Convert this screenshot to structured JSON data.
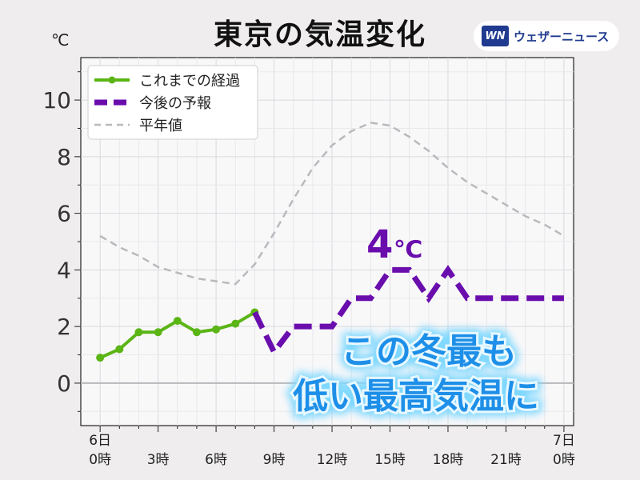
{
  "header": {
    "title": "東京の気温変化",
    "unit": "℃"
  },
  "logo": {
    "badge": "WN",
    "text": "ウェザーニュース"
  },
  "chart_data": {
    "type": "line",
    "ylim": [
      -1.5,
      11.5
    ],
    "xlim": [
      -1,
      24.5
    ],
    "y_ticks": [
      0,
      2,
      4,
      6,
      8,
      10
    ],
    "x_ticks": [
      {
        "x": 0,
        "line1": "6日",
        "line2": "0時"
      },
      {
        "x": 3,
        "line1": "",
        "line2": "3時"
      },
      {
        "x": 6,
        "line1": "",
        "line2": "6時"
      },
      {
        "x": 9,
        "line1": "",
        "line2": "9時"
      },
      {
        "x": 12,
        "line1": "",
        "line2": "12時"
      },
      {
        "x": 15,
        "line1": "",
        "line2": "15時"
      },
      {
        "x": 18,
        "line1": "",
        "line2": "18時"
      },
      {
        "x": 21,
        "line1": "",
        "line2": "21時"
      },
      {
        "x": 24,
        "line1": "7日",
        "line2": "0時"
      }
    ],
    "series": [
      {
        "name": "これまでの経過",
        "color": "#5bb515",
        "style": "solid-markers",
        "x": [
          0,
          1,
          2,
          3,
          4,
          5,
          6,
          7,
          8
        ],
        "y": [
          0.9,
          1.2,
          1.8,
          1.8,
          2.2,
          1.8,
          1.9,
          2.1,
          2.5
        ]
      },
      {
        "name": "今後の予報",
        "color": "#6a0dad",
        "style": "dashed-bold",
        "x": [
          8,
          9,
          10,
          11,
          12,
          13,
          14,
          15,
          16,
          17,
          18,
          19,
          20,
          21,
          22,
          23,
          24
        ],
        "y": [
          2.5,
          1.1,
          2,
          2,
          2,
          3,
          3,
          4,
          4,
          3,
          4,
          3,
          3,
          3,
          3,
          3,
          3
        ]
      },
      {
        "name": "平年値",
        "color": "#b9b9bd",
        "style": "dashed-thin",
        "x": [
          0,
          1,
          2,
          3,
          4,
          5,
          6,
          7,
          8,
          9,
          10,
          11,
          12,
          13,
          14,
          15,
          16,
          17,
          18,
          19,
          20,
          21,
          22,
          23,
          24
        ],
        "y": [
          5.2,
          4.8,
          4.5,
          4.1,
          3.9,
          3.7,
          3.6,
          3.5,
          4.2,
          5.3,
          6.5,
          7.6,
          8.4,
          8.9,
          9.2,
          9.1,
          8.7,
          8.2,
          7.6,
          7.1,
          6.7,
          6.3,
          5.9,
          5.6,
          5.2
        ]
      }
    ],
    "annotations": {
      "peak_label": "4",
      "peak_unit": "℃",
      "callout_line1": "この冬最も",
      "callout_line2": "低い最高気温に"
    }
  }
}
